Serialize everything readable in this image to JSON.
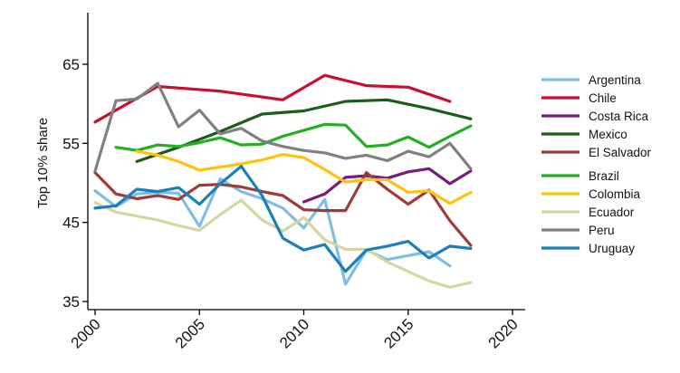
{
  "chart_data": {
    "type": "line",
    "title": "",
    "xlabel": "",
    "ylabel": "Top 10% share",
    "xlim": [
      2000,
      2020
    ],
    "ylim": [
      35,
      70
    ],
    "xticks": [
      "2000",
      "2005",
      "2010",
      "2015",
      "2020"
    ],
    "yticks": [
      "35",
      "45",
      "55",
      "65"
    ],
    "grid": false,
    "legend_position": "right",
    "series": [
      {
        "name": "Argentina",
        "color": "#7fbde6",
        "points": [
          [
            2000,
            49.0
          ],
          [
            2001,
            47.0
          ],
          [
            2002,
            48.6
          ],
          [
            2003,
            48.8
          ],
          [
            2004,
            48.7
          ],
          [
            2005,
            44.5
          ],
          [
            2006,
            50.5
          ],
          [
            2007,
            48.9
          ],
          [
            2008,
            48.0
          ],
          [
            2009,
            46.8
          ],
          [
            2010,
            44.3
          ],
          [
            2011,
            47.9
          ],
          [
            2012,
            37.2
          ],
          [
            2013,
            41.5
          ],
          [
            2014,
            40.3
          ],
          [
            2016,
            41.3
          ],
          [
            2017,
            39.5
          ]
        ]
      },
      {
        "name": "Chile",
        "color": "#c8102e",
        "points": [
          [
            2000,
            57.7
          ],
          [
            2003,
            62.2
          ],
          [
            2006,
            61.6
          ],
          [
            2009,
            60.5
          ],
          [
            2011,
            63.6
          ],
          [
            2013,
            62.3
          ],
          [
            2015,
            62.1
          ],
          [
            2017,
            60.3
          ]
        ]
      },
      {
        "name": "Costa Rica",
        "color": "#7a1c7d",
        "points": [
          [
            2010,
            47.6
          ],
          [
            2011,
            48.6
          ],
          [
            2012,
            50.7
          ],
          [
            2013,
            50.9
          ],
          [
            2014,
            50.6
          ],
          [
            2015,
            51.4
          ],
          [
            2016,
            51.8
          ],
          [
            2017,
            49.9
          ],
          [
            2018,
            51.5
          ]
        ]
      },
      {
        "name": "Mexico",
        "color": "#1a5e1a",
        "points": [
          [
            2002,
            52.7
          ],
          [
            2004,
            54.5
          ],
          [
            2006,
            56.5
          ],
          [
            2008,
            58.7
          ],
          [
            2010,
            59.1
          ],
          [
            2012,
            60.3
          ],
          [
            2014,
            60.5
          ],
          [
            2016,
            59.4
          ],
          [
            2018,
            58.1
          ]
        ]
      },
      {
        "name": "El Salvador",
        "color": "#9e3b3b",
        "points": [
          [
            2000,
            51.3
          ],
          [
            2001,
            48.6
          ],
          [
            2002,
            48.0
          ],
          [
            2003,
            48.4
          ],
          [
            2004,
            47.9
          ],
          [
            2005,
            49.7
          ],
          [
            2006,
            49.8
          ],
          [
            2007,
            49.5
          ],
          [
            2008,
            48.9
          ],
          [
            2009,
            48.4
          ],
          [
            2010,
            46.6
          ],
          [
            2011,
            46.5
          ],
          [
            2012,
            46.5
          ],
          [
            2013,
            51.3
          ],
          [
            2014,
            49.2
          ],
          [
            2015,
            47.3
          ],
          [
            2016,
            49.1
          ],
          [
            2017,
            45.2
          ],
          [
            2018,
            42.1
          ]
        ]
      },
      {
        "name": "Brazil",
        "color": "#22b022",
        "points": [
          [
            2001,
            54.5
          ],
          [
            2002,
            54.1
          ],
          [
            2003,
            54.8
          ],
          [
            2004,
            54.6
          ],
          [
            2005,
            55.1
          ],
          [
            2006,
            55.7
          ],
          [
            2007,
            54.8
          ],
          [
            2008,
            54.9
          ],
          [
            2009,
            55.9
          ],
          [
            2011,
            57.4
          ],
          [
            2012,
            57.3
          ],
          [
            2013,
            54.6
          ],
          [
            2014,
            54.8
          ],
          [
            2015,
            55.8
          ],
          [
            2016,
            54.5
          ],
          [
            2017,
            55.9
          ],
          [
            2018,
            57.2
          ]
        ]
      },
      {
        "name": "Colombia",
        "color": "#ffc20e",
        "points": [
          [
            2002,
            54.0
          ],
          [
            2003,
            53.5
          ],
          [
            2004,
            52.7
          ],
          [
            2005,
            51.6
          ],
          [
            2006,
            52.0
          ],
          [
            2007,
            52.4
          ],
          [
            2008,
            52.9
          ],
          [
            2009,
            53.6
          ],
          [
            2010,
            53.2
          ],
          [
            2011,
            51.7
          ],
          [
            2012,
            50.1
          ],
          [
            2013,
            50.4
          ],
          [
            2014,
            50.4
          ],
          [
            2015,
            48.8
          ],
          [
            2016,
            49.0
          ],
          [
            2017,
            47.4
          ],
          [
            2018,
            48.8
          ]
        ]
      },
      {
        "name": "Ecuador",
        "color": "#d6d6a0",
        "points": [
          [
            2000,
            47.5
          ],
          [
            2001,
            46.3
          ],
          [
            2002,
            45.8
          ],
          [
            2003,
            45.3
          ],
          [
            2004,
            44.6
          ],
          [
            2005,
            44.0
          ],
          [
            2006,
            46.0
          ],
          [
            2007,
            47.8
          ],
          [
            2008,
            45.3
          ],
          [
            2009,
            43.9
          ],
          [
            2010,
            45.6
          ],
          [
            2011,
            42.8
          ],
          [
            2012,
            41.6
          ],
          [
            2013,
            41.6
          ],
          [
            2014,
            40.0
          ],
          [
            2015,
            38.8
          ],
          [
            2016,
            37.6
          ],
          [
            2017,
            36.8
          ],
          [
            2018,
            37.4
          ]
        ]
      },
      {
        "name": "Peru",
        "color": "#808080",
        "points": [
          [
            2000,
            51.5
          ],
          [
            2001,
            60.4
          ],
          [
            2002,
            60.6
          ],
          [
            2003,
            62.6
          ],
          [
            2004,
            57.1
          ],
          [
            2005,
            59.2
          ],
          [
            2006,
            56.2
          ],
          [
            2007,
            56.9
          ],
          [
            2008,
            55.3
          ],
          [
            2009,
            54.6
          ],
          [
            2010,
            54.1
          ],
          [
            2011,
            53.8
          ],
          [
            2012,
            53.1
          ],
          [
            2013,
            53.5
          ],
          [
            2014,
            52.8
          ],
          [
            2015,
            54.0
          ],
          [
            2016,
            53.3
          ],
          [
            2017,
            55.0
          ],
          [
            2018,
            51.8
          ]
        ]
      },
      {
        "name": "Uruguay",
        "color": "#1a80bb",
        "points": [
          [
            2000,
            46.8
          ],
          [
            2001,
            47.1
          ],
          [
            2002,
            49.2
          ],
          [
            2003,
            48.9
          ],
          [
            2004,
            49.4
          ],
          [
            2005,
            47.3
          ],
          [
            2006,
            49.9
          ],
          [
            2007,
            52.1
          ],
          [
            2008,
            48.4
          ],
          [
            2009,
            43.0
          ],
          [
            2010,
            41.5
          ],
          [
            2011,
            42.2
          ],
          [
            2012,
            38.8
          ],
          [
            2013,
            41.5
          ],
          [
            2014,
            42.0
          ],
          [
            2015,
            42.6
          ],
          [
            2016,
            40.5
          ],
          [
            2017,
            42.0
          ],
          [
            2018,
            41.7
          ]
        ]
      }
    ]
  }
}
